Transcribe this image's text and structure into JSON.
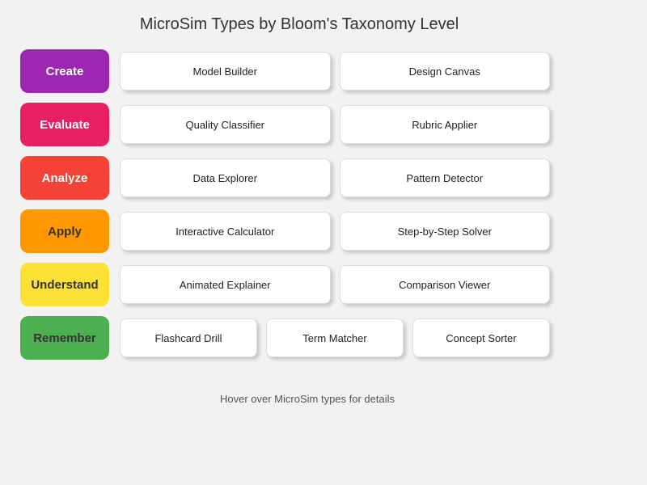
{
  "page": {
    "title": "MicroSim Types by Bloom's Taxonomy Level",
    "footer_hint": "Hover over MicroSim types for details"
  },
  "theme": {
    "--page-bg": "#F2F2F2",
    "--card-bg": "#FFFFFF",
    "--card-border": "#DDDDDD",
    "--card-text": "#222222",
    "--title-color": "#333333",
    "--footer-color": "#555555"
  },
  "rows": [
    {
      "level": "Create",
      "color": "#9C27B0",
      "text_color": "#FFFFFF",
      "types": [
        "Model Builder",
        "Design Canvas"
      ]
    },
    {
      "level": "Evaluate",
      "color": "#E91E63",
      "text_color": "#FFFFFF",
      "types": [
        "Quality Classifier",
        "Rubric Applier"
      ]
    },
    {
      "level": "Analyze",
      "color": "#F44336",
      "text_color": "#FFFFFF",
      "types": [
        "Data Explorer",
        "Pattern Detector"
      ]
    },
    {
      "level": "Apply",
      "color": "#FF9800",
      "text_color": "#333333",
      "types": [
        "Interactive Calculator",
        "Step-by-Step Solver"
      ]
    },
    {
      "level": "Understand",
      "color": "#FBE136",
      "text_color": "#333333",
      "types": [
        "Animated Explainer",
        "Comparison Viewer"
      ]
    },
    {
      "level": "Remember",
      "color": "#4CAF50",
      "text_color": "#333333",
      "types": [
        "Flashcard Drill",
        "Term Matcher",
        "Concept Sorter"
      ]
    }
  ]
}
